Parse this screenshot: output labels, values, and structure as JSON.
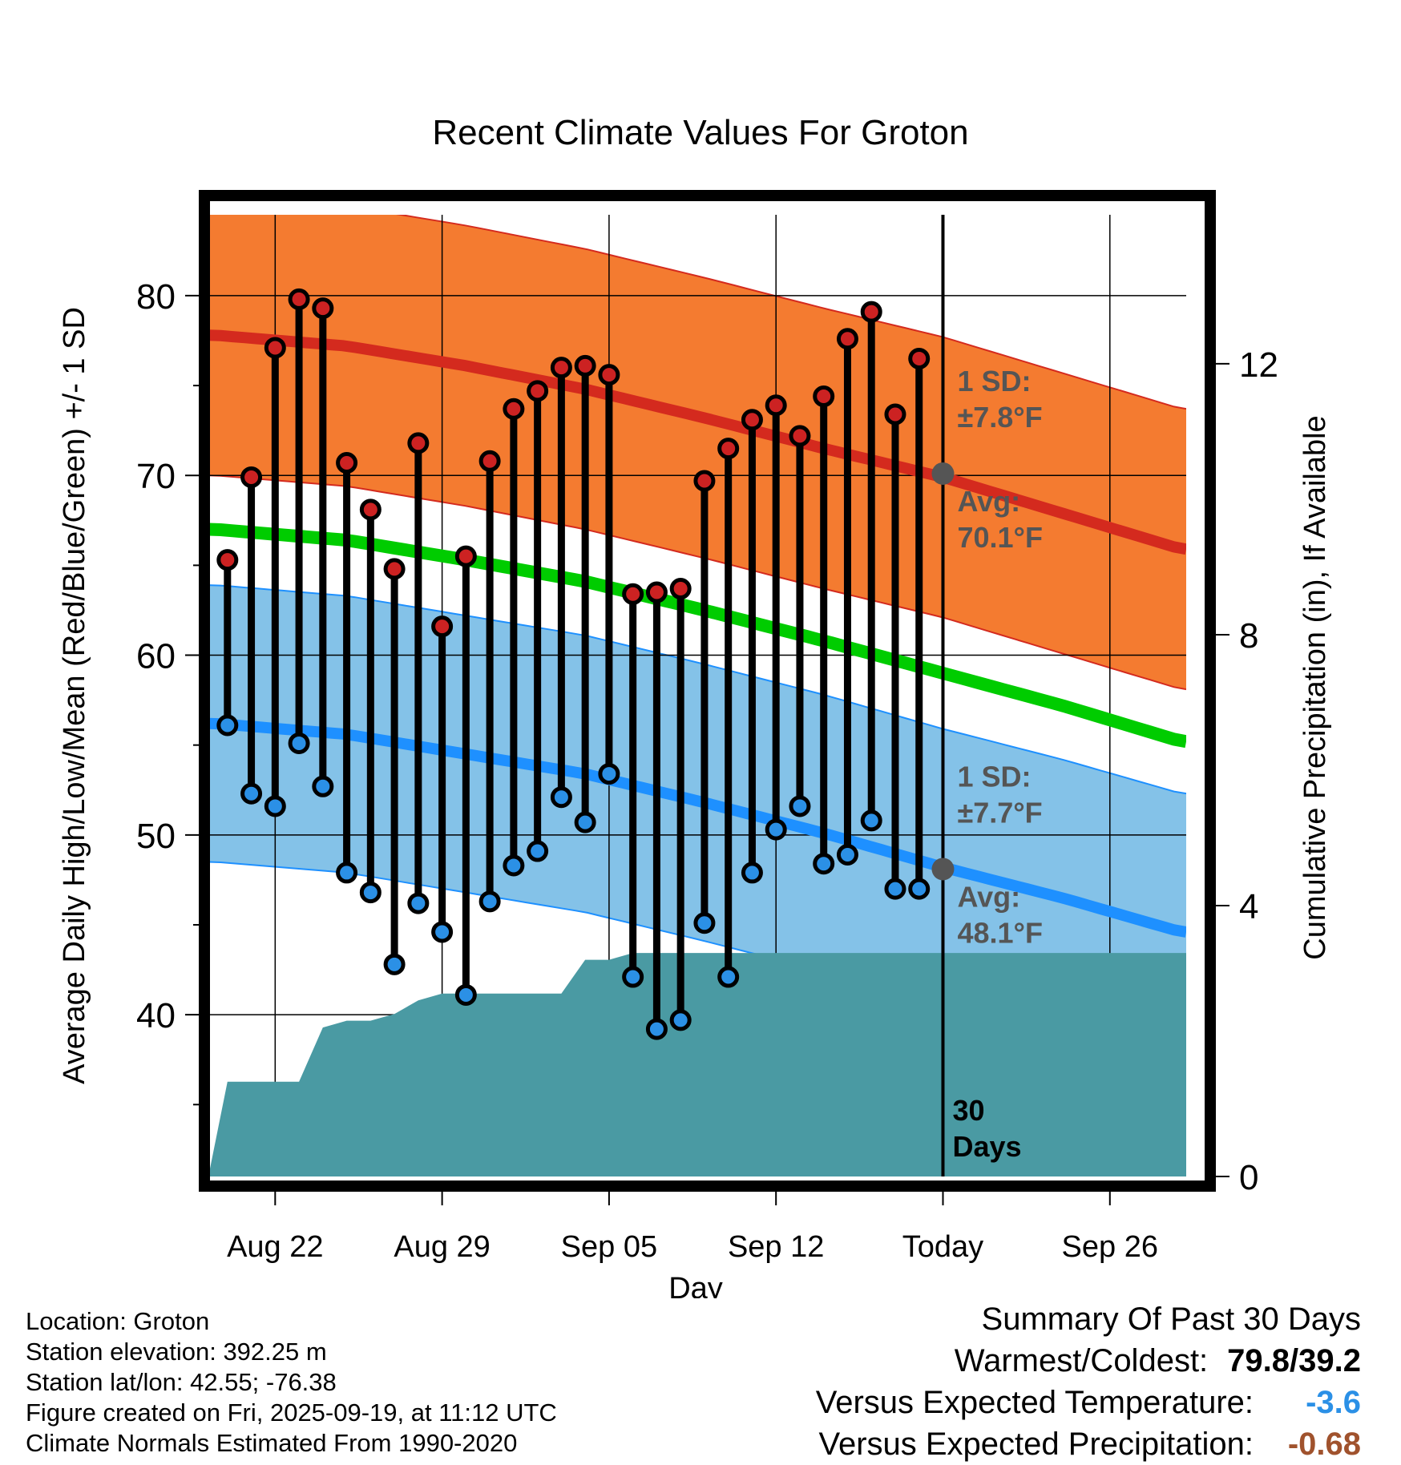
{
  "chart_data": {
    "type": "line",
    "title": "Recent Climate Values For Groton",
    "xlabel": "Day",
    "ylabel": "Average Daily High/Low/Mean (Red/Blue/Green) +/- 1 SD",
    "y2label": "Cumulative Precipitation (in), If Available",
    "ylim": [
      31,
      84.5
    ],
    "y_ticks": [
      40,
      50,
      60,
      70,
      80
    ],
    "y2lim": [
      0,
      14.2
    ],
    "y2_ticks": [
      0,
      4,
      8,
      12
    ],
    "xlim": [
      -0.8,
      40.2
    ],
    "x_ticks": [
      {
        "day": 2,
        "label": "Aug 22"
      },
      {
        "day": 9,
        "label": "Aug 29"
      },
      {
        "day": 16,
        "label": "Sep 05"
      },
      {
        "day": 23,
        "label": "Sep 12"
      },
      {
        "day": 30,
        "label": "Today"
      },
      {
        "day": 37,
        "label": "Sep 26"
      }
    ],
    "today_day": 30,
    "today_label": [
      "30",
      "Days"
    ],
    "normal_high": {
      "days": [
        -0.5,
        5,
        10,
        15,
        20,
        25,
        30,
        35,
        40
      ],
      "mean": [
        77.8,
        77.2,
        76.1,
        74.8,
        73.2,
        71.5,
        69.9,
        67.9,
        65.9
      ],
      "sd": 7.8,
      "annotation": {
        "sd_label": "1 SD:",
        "sd_value": "±7.8°F",
        "avg_label": "Avg:",
        "avg_value": "70.1°F",
        "avg": 70.1
      }
    },
    "normal_low": {
      "days": [
        -0.5,
        5,
        10,
        15,
        20,
        25,
        30,
        35,
        40
      ],
      "mean": [
        56.2,
        55.6,
        54.5,
        53.4,
        51.8,
        50.1,
        48.2,
        46.5,
        44.6
      ],
      "sd": 7.7,
      "annotation": {
        "sd_label": "1 SD:",
        "sd_value": "±7.7°F",
        "avg_label": "Avg:",
        "avg_value": "48.1°F",
        "avg": 48.1
      }
    },
    "normal_mean": {
      "days": [
        -0.5,
        5,
        10,
        15,
        20,
        25,
        30,
        35,
        40
      ],
      "values": [
        67.0,
        66.4,
        65.3,
        64.1,
        62.5,
        60.8,
        59.0,
        57.2,
        55.2
      ]
    },
    "daily": {
      "days": [
        0,
        1,
        2,
        3,
        4,
        5,
        6,
        7,
        8,
        9,
        10,
        11,
        12,
        13,
        14,
        15,
        16,
        17,
        18,
        19,
        20,
        21,
        22,
        23,
        24,
        25,
        26,
        27,
        28,
        29
      ],
      "highs": [
        65.3,
        69.9,
        77.1,
        79.8,
        79.3,
        70.7,
        68.1,
        64.8,
        71.8,
        61.6,
        65.5,
        70.8,
        73.7,
        74.7,
        76.0,
        76.1,
        75.6,
        63.4,
        63.5,
        63.7,
        69.7,
        71.5,
        73.1,
        73.9,
        72.2,
        74.4,
        77.6,
        79.1,
        73.4,
        76.5
      ],
      "lows": [
        56.1,
        52.3,
        51.6,
        55.1,
        52.7,
        47.9,
        46.8,
        42.8,
        46.2,
        44.6,
        41.1,
        46.3,
        48.3,
        49.1,
        52.1,
        50.7,
        53.4,
        42.1,
        39.2,
        39.7,
        45.1,
        42.1,
        47.9,
        50.3,
        51.6,
        48.4,
        48.9,
        50.8,
        47.0,
        47.0
      ]
    },
    "precip": {
      "days": [
        -0.8,
        0,
        1,
        2,
        3,
        4,
        5,
        6,
        7,
        8,
        9,
        10,
        11,
        12,
        13,
        14,
        15,
        16,
        17,
        18,
        19,
        20,
        21,
        22,
        23,
        24,
        25,
        26,
        27,
        28,
        29,
        30,
        40.2
      ],
      "values": [
        0,
        1.4,
        1.4,
        1.4,
        1.4,
        2.2,
        2.3,
        2.3,
        2.4,
        2.6,
        2.7,
        2.7,
        2.7,
        2.7,
        2.7,
        2.7,
        3.2,
        3.2,
        3.3,
        3.3,
        3.3,
        3.3,
        3.3,
        3.3,
        3.3,
        3.3,
        3.3,
        3.3,
        3.3,
        3.3,
        3.3,
        3.3,
        3.3
      ]
    },
    "colors": {
      "high_band": "#f47b30",
      "high_line": "#d42a1e",
      "low_band": "#84c2e8",
      "low_line": "#1e90ff",
      "mean_line": "#00cc00",
      "precip": "#4a9aa3",
      "annotation": "#555555",
      "high_dot": "#cc2222",
      "low_dot": "#2b90e6"
    }
  },
  "footer": {
    "location": "Location: Groton",
    "elevation": "Station elevation: 392.25 m",
    "latlon": "Station lat/lon: 42.55; -76.38",
    "created": "Figure created on Fri, 2025-09-19, at 11:12 UTC",
    "normals": "Climate Normals Estimated From 1990-2020"
  },
  "summary": {
    "title": "Summary Of Past 30 Days",
    "warmest_label": "Warmest/Coldest:",
    "warmest_value": "79.8/39.2",
    "temp_label": "Versus Expected Temperature:",
    "temp_value": "-3.6",
    "temp_color": "#2b90e6",
    "precip_label": "Versus Expected Precipitation:",
    "precip_value": "-0.68",
    "precip_color": "#a0522d"
  }
}
